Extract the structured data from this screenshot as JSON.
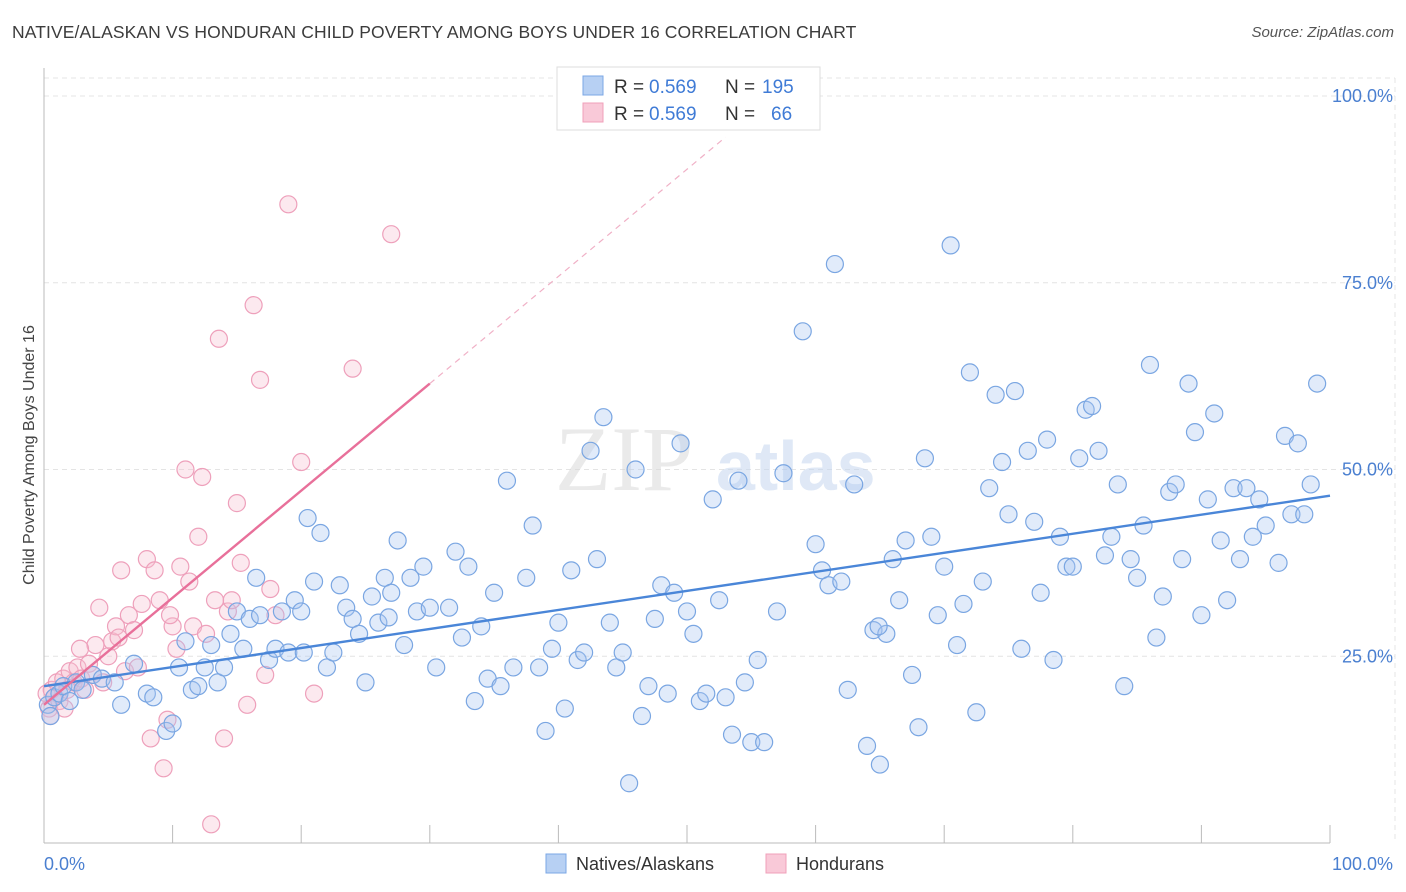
{
  "title": "NATIVE/ALASKAN VS HONDURAN CHILD POVERTY AMONG BOYS UNDER 16 CORRELATION CHART",
  "source": "Source: ZipAtlas.com",
  "watermark": {
    "zip": "ZIP",
    "atlas": "atlas"
  },
  "legend_top": [
    {
      "r_label": "R = ",
      "r_value": "0.569",
      "n_label": "N = ",
      "n_value": "195",
      "color": "#7ba7e6"
    },
    {
      "r_label": "R = ",
      "r_value": "0.569",
      "n_label": "N = ",
      "n_value": "66",
      "color": "#f0a0ba"
    }
  ],
  "legend_bottom": [
    {
      "label": "Natives/Alaskans",
      "color": "#7ba7e6"
    },
    {
      "label": "Hondurans",
      "color": "#f0a0ba"
    }
  ],
  "chart_data": {
    "type": "scatter",
    "ylabel": "Child Poverty Among Boys Under 16",
    "xlim": [
      0,
      100
    ],
    "ylim": [
      0,
      100
    ],
    "x_tick_labels": [
      {
        "x": 0,
        "label": "0.0%"
      },
      {
        "x": 100,
        "label": "100.0%"
      }
    ],
    "y_tick_labels": [
      {
        "y": 25,
        "label": "25.0%"
      },
      {
        "y": 50,
        "label": "50.0%"
      },
      {
        "y": 75,
        "label": "75.0%"
      },
      {
        "y": 100,
        "label": "100.0%"
      }
    ],
    "grid": true,
    "colors": {
      "natives": "#4a86d8",
      "natives_fill": "#a9c6f0",
      "hondurans": "#e8709a",
      "hondurans_fill": "#f7bfd0",
      "tick_label": "#4a7fd0"
    },
    "series": [
      {
        "name": "Natives/Alaskans",
        "trend": {
          "x0": 0,
          "y0": 21.0,
          "x1": 100,
          "y1": 46.5
        },
        "points": [
          [
            0.3,
            18.5
          ],
          [
            0.5,
            17.0
          ],
          [
            0.8,
            19.5
          ],
          [
            1.2,
            20.0
          ],
          [
            1.5,
            21.0
          ],
          [
            2.0,
            19.0
          ],
          [
            2.5,
            21.5
          ],
          [
            3.0,
            20.5
          ],
          [
            3.8,
            22.5
          ],
          [
            4.5,
            22.0
          ],
          [
            5.5,
            21.5
          ],
          [
            6.0,
            18.5
          ],
          [
            7.0,
            24.0
          ],
          [
            8.0,
            20.0
          ],
          [
            8.5,
            19.5
          ],
          [
            9.5,
            15.0
          ],
          [
            10.0,
            16.0
          ],
          [
            10.5,
            23.5
          ],
          [
            11.0,
            27.0
          ],
          [
            11.5,
            20.5
          ],
          [
            12.0,
            21.0
          ],
          [
            12.5,
            23.5
          ],
          [
            13.0,
            26.5
          ],
          [
            13.5,
            21.5
          ],
          [
            14.0,
            23.5
          ],
          [
            14.5,
            28.0
          ],
          [
            15.0,
            31.0
          ],
          [
            15.5,
            26.0
          ],
          [
            16.0,
            30.0
          ],
          [
            16.5,
            35.5
          ],
          [
            16.8,
            30.5
          ],
          [
            17.5,
            24.5
          ],
          [
            18.0,
            26.0
          ],
          [
            18.5,
            31.0
          ],
          [
            19.0,
            25.5
          ],
          [
            19.5,
            32.5
          ],
          [
            20.0,
            31.0
          ],
          [
            20.5,
            43.5
          ],
          [
            21.0,
            35.0
          ],
          [
            21.5,
            41.5
          ],
          [
            22.0,
            23.5
          ],
          [
            22.5,
            25.5
          ],
          [
            23.0,
            34.5
          ],
          [
            23.5,
            31.5
          ],
          [
            24.0,
            30.0
          ],
          [
            24.5,
            28.0
          ],
          [
            25.0,
            21.5
          ],
          [
            25.5,
            33.0
          ],
          [
            26.0,
            29.5
          ],
          [
            26.5,
            35.5
          ],
          [
            27.0,
            33.5
          ],
          [
            27.5,
            40.5
          ],
          [
            28.0,
            26.5
          ],
          [
            28.5,
            35.5
          ],
          [
            29.0,
            31.0
          ],
          [
            29.5,
            37.0
          ],
          [
            30.0,
            31.5
          ],
          [
            30.5,
            23.5
          ],
          [
            31.5,
            31.5
          ],
          [
            32.0,
            39.0
          ],
          [
            32.5,
            27.5
          ],
          [
            33.0,
            37.0
          ],
          [
            33.5,
            19.0
          ],
          [
            34.0,
            29.0
          ],
          [
            34.5,
            22.0
          ],
          [
            35.0,
            33.5
          ],
          [
            35.5,
            21.0
          ],
          [
            36.0,
            48.5
          ],
          [
            36.5,
            23.5
          ],
          [
            37.5,
            35.5
          ],
          [
            38.0,
            42.5
          ],
          [
            38.5,
            23.5
          ],
          [
            39.0,
            15.0
          ],
          [
            39.5,
            26.0
          ],
          [
            40.0,
            29.5
          ],
          [
            40.5,
            18.0
          ],
          [
            41.0,
            36.5
          ],
          [
            41.5,
            24.5
          ],
          [
            42.0,
            25.5
          ],
          [
            42.5,
            52.5
          ],
          [
            43.0,
            38.0
          ],
          [
            43.5,
            57.0
          ],
          [
            44.0,
            29.5
          ],
          [
            44.5,
            23.5
          ],
          [
            45.0,
            25.5
          ],
          [
            45.5,
            8.0
          ],
          [
            46.0,
            50.0
          ],
          [
            46.5,
            17.0
          ],
          [
            47.0,
            21.0
          ],
          [
            47.5,
            30.0
          ],
          [
            48.0,
            34.5
          ],
          [
            48.5,
            20.0
          ],
          [
            49.0,
            33.5
          ],
          [
            49.5,
            53.5
          ],
          [
            50.0,
            31.0
          ],
          [
            50.5,
            28.0
          ],
          [
            51.0,
            19.0
          ],
          [
            51.5,
            20.0
          ],
          [
            52.0,
            46.0
          ],
          [
            52.5,
            32.5
          ],
          [
            53.0,
            19.5
          ],
          [
            53.5,
            14.5
          ],
          [
            54.0,
            48.5
          ],
          [
            54.5,
            21.5
          ],
          [
            55.0,
            13.5
          ],
          [
            55.5,
            24.5
          ],
          [
            56.0,
            13.5
          ],
          [
            57.0,
            31.0
          ],
          [
            57.5,
            49.5
          ],
          [
            59.0,
            68.5
          ],
          [
            60.0,
            40.0
          ],
          [
            60.5,
            36.5
          ],
          [
            61.0,
            34.5
          ],
          [
            61.5,
            77.5
          ],
          [
            62.0,
            35.0
          ],
          [
            62.5,
            20.5
          ],
          [
            63.0,
            48.0
          ],
          [
            64.0,
            13.0
          ],
          [
            64.5,
            28.5
          ],
          [
            65.0,
            10.5
          ],
          [
            65.5,
            28.0
          ],
          [
            66.0,
            38.0
          ],
          [
            66.5,
            32.5
          ],
          [
            67.0,
            40.5
          ],
          [
            67.5,
            22.5
          ],
          [
            68.0,
            15.5
          ],
          [
            68.5,
            51.5
          ],
          [
            69.0,
            41.0
          ],
          [
            69.5,
            30.5
          ],
          [
            70.0,
            37.0
          ],
          [
            70.5,
            80.0
          ],
          [
            71.0,
            26.5
          ],
          [
            71.5,
            32.0
          ],
          [
            72.0,
            63.0
          ],
          [
            72.5,
            17.5
          ],
          [
            73.0,
            35.0
          ],
          [
            73.5,
            47.5
          ],
          [
            74.0,
            60.0
          ],
          [
            74.5,
            51.0
          ],
          [
            75.0,
            44.0
          ],
          [
            75.5,
            60.5
          ],
          [
            76.0,
            26.0
          ],
          [
            76.5,
            52.5
          ],
          [
            77.0,
            43.0
          ],
          [
            77.5,
            33.5
          ],
          [
            78.0,
            54.0
          ],
          [
            78.5,
            24.5
          ],
          [
            79.0,
            41.0
          ],
          [
            79.5,
            37.0
          ],
          [
            80.0,
            37.0
          ],
          [
            80.5,
            51.5
          ],
          [
            81.0,
            58.0
          ],
          [
            81.5,
            58.5
          ],
          [
            82.0,
            52.5
          ],
          [
            82.5,
            38.5
          ],
          [
            83.0,
            41.0
          ],
          [
            83.5,
            48.0
          ],
          [
            84.0,
            21.0
          ],
          [
            84.5,
            38.0
          ],
          [
            85.0,
            35.5
          ],
          [
            85.5,
            42.5
          ],
          [
            86.0,
            64.0
          ],
          [
            86.5,
            27.5
          ],
          [
            87.0,
            33.0
          ],
          [
            87.5,
            47.0
          ],
          [
            88.0,
            48.0
          ],
          [
            88.5,
            38.0
          ],
          [
            89.0,
            61.5
          ],
          [
            89.5,
            55.0
          ],
          [
            90.0,
            30.5
          ],
          [
            90.5,
            46.0
          ],
          [
            91.0,
            57.5
          ],
          [
            91.5,
            40.5
          ],
          [
            92.0,
            32.5
          ],
          [
            92.5,
            47.5
          ],
          [
            93.0,
            38.0
          ],
          [
            93.5,
            47.5
          ],
          [
            94.0,
            41.0
          ],
          [
            94.5,
            46.0
          ],
          [
            95.0,
            42.5
          ],
          [
            96.0,
            37.5
          ],
          [
            96.5,
            54.5
          ],
          [
            97.0,
            44.0
          ],
          [
            97.5,
            53.5
          ],
          [
            98.0,
            44.0
          ],
          [
            98.5,
            48.0
          ],
          [
            99.0,
            61.5
          ],
          [
            20.2,
            25.5
          ],
          [
            26.8,
            30.2
          ],
          [
            64.9,
            29.0
          ]
        ]
      },
      {
        "name": "Hondurans",
        "trend": {
          "x0": 0,
          "y0": 18.5,
          "x1": 30,
          "y1": 61.5,
          "dash_x1": 53,
          "dash_y1": 94.5
        },
        "points": [
          [
            0.2,
            20.0
          ],
          [
            0.4,
            18.0
          ],
          [
            0.6,
            20.5
          ],
          [
            0.8,
            19.5
          ],
          [
            1.0,
            21.5
          ],
          [
            1.2,
            19.0
          ],
          [
            1.5,
            22.0
          ],
          [
            1.8,
            20.5
          ],
          [
            2.0,
            23.0
          ],
          [
            2.3,
            21.5
          ],
          [
            2.6,
            23.5
          ],
          [
            2.9,
            22.0
          ],
          [
            3.2,
            20.5
          ],
          [
            3.5,
            24.0
          ],
          [
            3.8,
            22.5
          ],
          [
            4.0,
            26.5
          ],
          [
            4.3,
            31.5
          ],
          [
            4.6,
            21.5
          ],
          [
            5.0,
            25.0
          ],
          [
            5.3,
            27.0
          ],
          [
            5.6,
            29.0
          ],
          [
            6.0,
            36.5
          ],
          [
            6.3,
            23.0
          ],
          [
            6.6,
            30.5
          ],
          [
            7.0,
            28.5
          ],
          [
            7.3,
            23.5
          ],
          [
            7.6,
            32.0
          ],
          [
            8.0,
            38.0
          ],
          [
            8.3,
            14.0
          ],
          [
            8.6,
            36.5
          ],
          [
            9.0,
            32.5
          ],
          [
            9.3,
            10.0
          ],
          [
            9.6,
            16.5
          ],
          [
            10.0,
            29.0
          ],
          [
            10.3,
            26.0
          ],
          [
            10.6,
            37.0
          ],
          [
            11.0,
            50.0
          ],
          [
            11.3,
            35.0
          ],
          [
            11.6,
            29.0
          ],
          [
            12.0,
            41.0
          ],
          [
            12.3,
            49.0
          ],
          [
            12.6,
            28.0
          ],
          [
            13.0,
            2.5
          ],
          [
            13.3,
            32.5
          ],
          [
            13.6,
            67.5
          ],
          [
            14.0,
            14.0
          ],
          [
            14.3,
            31.0
          ],
          [
            14.6,
            32.5
          ],
          [
            15.0,
            45.5
          ],
          [
            15.3,
            37.5
          ],
          [
            15.8,
            18.5
          ],
          [
            16.3,
            72.0
          ],
          [
            16.8,
            62.0
          ],
          [
            17.2,
            22.5
          ],
          [
            17.6,
            34.0
          ],
          [
            18.0,
            30.5
          ],
          [
            19.0,
            85.5
          ],
          [
            20.0,
            51.0
          ],
          [
            21.0,
            20.0
          ],
          [
            24.0,
            63.5
          ],
          [
            27.0,
            81.5
          ],
          [
            0.5,
            17.0
          ],
          [
            1.6,
            18.0
          ],
          [
            2.8,
            26.0
          ],
          [
            5.8,
            27.5
          ],
          [
            9.8,
            30.5
          ]
        ]
      }
    ]
  }
}
